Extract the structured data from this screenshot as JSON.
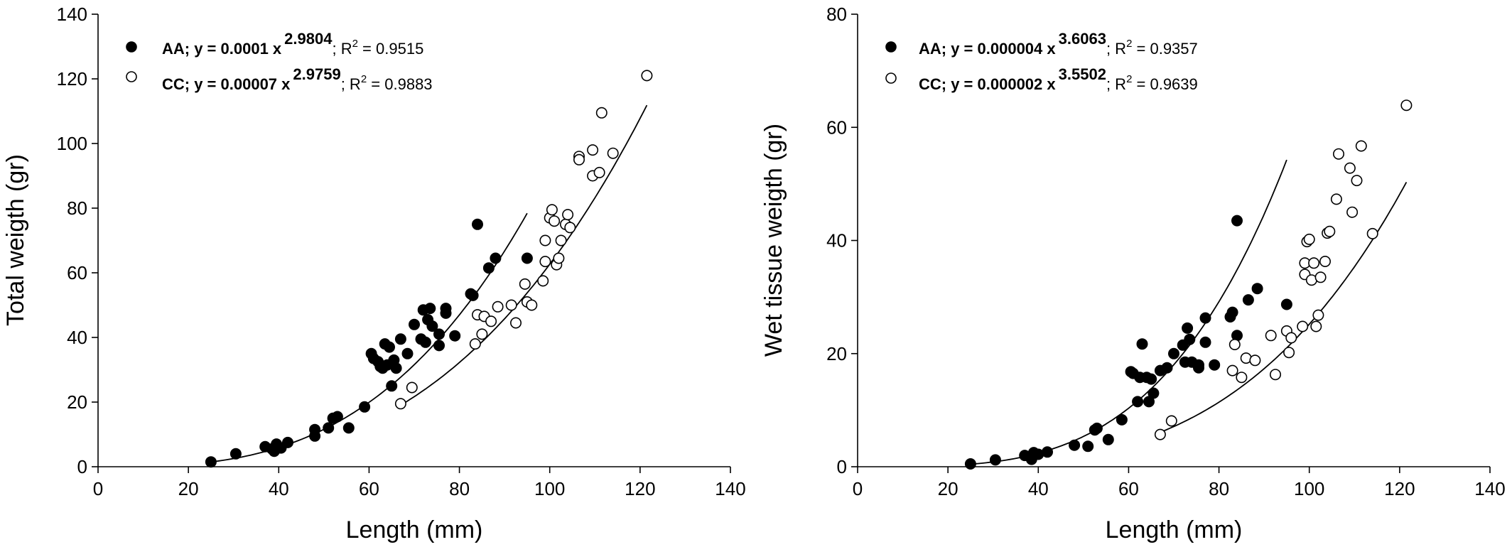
{
  "chart_data": [
    {
      "type": "scatter",
      "xlabel": "Length (mm)",
      "ylabel": "Total weigth (gr)",
      "xlim": [
        0,
        140
      ],
      "ylim": [
        0,
        140
      ],
      "xticks": [
        0,
        20,
        40,
        60,
        80,
        100,
        120,
        140
      ],
      "yticks": [
        0,
        20,
        40,
        60,
        80,
        100,
        120,
        140
      ],
      "grid": false,
      "legend_position": "top-left",
      "series": [
        {
          "name": "AA",
          "marker": "filled-circle",
          "eq_lead": "AA; y = 0.0001 x",
          "exp": "2.9804",
          "r2_label": "; R",
          "r2_sup": "2",
          "r2_value": " = 0.9515",
          "fit": {
            "a": 0.0001,
            "b": 2.9804,
            "x_range": [
              25,
              95
            ]
          },
          "points": [
            [
              25,
              1.5
            ],
            [
              30.5,
              4
            ],
            [
              37,
              6.2
            ],
            [
              38.5,
              5.5
            ],
            [
              39,
              4.8
            ],
            [
              39.5,
              7
            ],
            [
              40.5,
              5.8
            ],
            [
              42,
              7.5
            ],
            [
              48,
              11.5
            ],
            [
              48,
              9.5
            ],
            [
              51,
              12
            ],
            [
              52,
              15
            ],
            [
              53,
              15.5
            ],
            [
              55.5,
              12
            ],
            [
              59,
              18.5
            ],
            [
              60.5,
              35
            ],
            [
              61,
              33.5
            ],
            [
              62,
              32.5
            ],
            [
              62.5,
              31
            ],
            [
              63,
              30.5
            ],
            [
              63.5,
              38
            ],
            [
              64,
              31.5
            ],
            [
              64.5,
              37
            ],
            [
              65,
              25
            ],
            [
              65.5,
              33
            ],
            [
              66,
              30.5
            ],
            [
              67,
              39.5
            ],
            [
              68.5,
              35
            ],
            [
              70,
              44
            ],
            [
              71.5,
              39.5
            ],
            [
              72,
              48.5
            ],
            [
              72.5,
              38.5
            ],
            [
              73,
              45.5
            ],
            [
              73.5,
              49
            ],
            [
              74,
              43.5
            ],
            [
              75.5,
              37.5
            ],
            [
              75.5,
              41
            ],
            [
              77,
              49
            ],
            [
              77,
              47.5
            ],
            [
              79,
              40.5
            ],
            [
              82.5,
              53.5
            ],
            [
              83,
              53
            ],
            [
              84,
              75
            ],
            [
              86.5,
              61.5
            ],
            [
              88,
              64.5
            ],
            [
              95,
              64.5
            ]
          ]
        },
        {
          "name": "CC",
          "marker": "open-circle",
          "eq_lead": "CC; y = 0.00007 x",
          "exp": "2.9759",
          "r2_label": "; R",
          "r2_sup": "2",
          "r2_value": " = 0.9883",
          "fit": {
            "a": 7e-05,
            "b": 2.9759,
            "x_range": [
              67,
              121.5
            ]
          },
          "points": [
            [
              67,
              19.5
            ],
            [
              69.5,
              24.5
            ],
            [
              83.5,
              38
            ],
            [
              84,
              47
            ],
            [
              85,
              41
            ],
            [
              85.5,
              46.5
            ],
            [
              87,
              45
            ],
            [
              88.5,
              49.5
            ],
            [
              91.5,
              50
            ],
            [
              92.5,
              44.5
            ],
            [
              94.5,
              56.5
            ],
            [
              95,
              51
            ],
            [
              96,
              50
            ],
            [
              98.5,
              57.5
            ],
            [
              99,
              63.5
            ],
            [
              99,
              70
            ],
            [
              100,
              77
            ],
            [
              100.5,
              79.5
            ],
            [
              101,
              76
            ],
            [
              101.5,
              62.5
            ],
            [
              102,
              64.5
            ],
            [
              102.5,
              70
            ],
            [
              103.5,
              75
            ],
            [
              104,
              78
            ],
            [
              104.5,
              74
            ],
            [
              106.5,
              96
            ],
            [
              106.5,
              95
            ],
            [
              109.5,
              98
            ],
            [
              109.5,
              90
            ],
            [
              111,
              91
            ],
            [
              111.5,
              109.5
            ],
            [
              114,
              97
            ],
            [
              121.5,
              121
            ]
          ]
        }
      ]
    },
    {
      "type": "scatter",
      "xlabel": "Length (mm)",
      "ylabel": "Wet tissue weigth (gr)",
      "xlim": [
        0,
        140
      ],
      "ylim": [
        0,
        80
      ],
      "xticks": [
        0,
        20,
        40,
        60,
        80,
        100,
        120,
        140
      ],
      "yticks": [
        0,
        20,
        40,
        60,
        80
      ],
      "grid": false,
      "legend_position": "top-left",
      "series": [
        {
          "name": "AA",
          "marker": "filled-circle",
          "eq_lead": "AA; y = 0.000004 x",
          "exp": "3.6063",
          "r2_label": "; R",
          "r2_sup": "2",
          "r2_value": " = 0.9357",
          "fit": {
            "a": 4e-06,
            "b": 3.6063,
            "x_range": [
              25,
              95
            ]
          },
          "points": [
            [
              25,
              0.5
            ],
            [
              30.5,
              1.2
            ],
            [
              37,
              2
            ],
            [
              38.5,
              1.3
            ],
            [
              39,
              2.5
            ],
            [
              40,
              2.2
            ],
            [
              42,
              2.6
            ],
            [
              48,
              3.8
            ],
            [
              51,
              3.6
            ],
            [
              52.5,
              6.5
            ],
            [
              53,
              6.8
            ],
            [
              55.5,
              4.8
            ],
            [
              58.5,
              8.3
            ],
            [
              60.5,
              16.8
            ],
            [
              61,
              16.5
            ],
            [
              62,
              11.5
            ],
            [
              62.5,
              15.8
            ],
            [
              63,
              21.7
            ],
            [
              64,
              15.8
            ],
            [
              64.5,
              11.5
            ],
            [
              65,
              15.5
            ],
            [
              65.5,
              13
            ],
            [
              67,
              17
            ],
            [
              68.5,
              17.5
            ],
            [
              70,
              20
            ],
            [
              72,
              21.5
            ],
            [
              72.5,
              18.5
            ],
            [
              73,
              24.5
            ],
            [
              73.5,
              22.5
            ],
            [
              74,
              18.5
            ],
            [
              75.5,
              17.5
            ],
            [
              75.5,
              18
            ],
            [
              77,
              26.3
            ],
            [
              77,
              22
            ],
            [
              79,
              18
            ],
            [
              82.5,
              26.5
            ],
            [
              83,
              27.3
            ],
            [
              84,
              43.5
            ],
            [
              84,
              23.2
            ],
            [
              86.5,
              29.5
            ],
            [
              88.5,
              31.5
            ],
            [
              95,
              28.7
            ]
          ]
        },
        {
          "name": "CC",
          "marker": "open-circle",
          "eq_lead": "CC; y = 0.000002 x",
          "exp": "3.5502",
          "r2_label": "; R",
          "r2_sup": "2",
          "r2_value": " = 0.9639",
          "fit": {
            "a": 2e-06,
            "b": 3.5502,
            "x_range": [
              67,
              121.5
            ]
          },
          "points": [
            [
              67,
              5.7
            ],
            [
              69.5,
              8.1
            ],
            [
              83,
              17
            ],
            [
              83.5,
              21.6
            ],
            [
              85,
              15.8
            ],
            [
              86,
              19.2
            ],
            [
              88,
              18.8
            ],
            [
              91.5,
              23.2
            ],
            [
              92.5,
              16.3
            ],
            [
              95,
              24
            ],
            [
              95.5,
              20.2
            ],
            [
              96,
              22.8
            ],
            [
              98.5,
              24.8
            ],
            [
              99,
              34
            ],
            [
              99,
              36
            ],
            [
              99.5,
              39.8
            ],
            [
              100,
              40.2
            ],
            [
              100.5,
              33
            ],
            [
              101,
              36
            ],
            [
              101.5,
              24.8
            ],
            [
              102,
              26.8
            ],
            [
              102.5,
              33.5
            ],
            [
              103.5,
              36.3
            ],
            [
              104,
              41.3
            ],
            [
              104.5,
              41.6
            ],
            [
              106,
              47.3
            ],
            [
              106.5,
              55.3
            ],
            [
              109,
              52.8
            ],
            [
              109.5,
              45
            ],
            [
              110.5,
              50.6
            ],
            [
              111.5,
              56.7
            ],
            [
              114,
              41.2
            ],
            [
              121.5,
              63.9
            ]
          ]
        }
      ]
    }
  ]
}
